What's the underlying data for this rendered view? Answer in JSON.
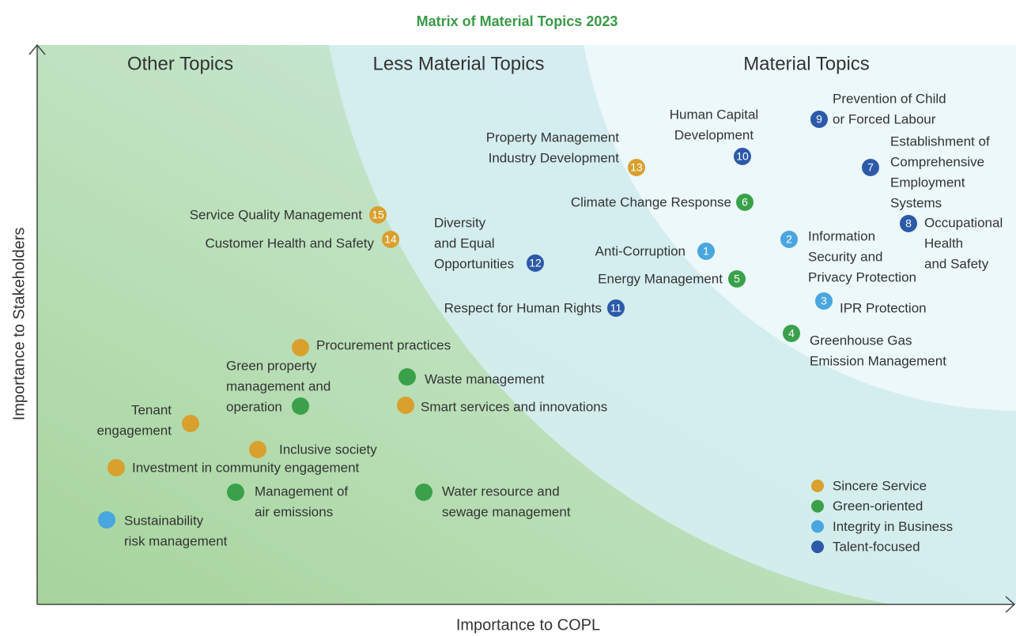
{
  "title": "Matrix of Material Topics 2023",
  "y_axis_label": "Importance to Stakeholders",
  "x_axis_label": "Importance to COPL",
  "regions": [
    "Other Topics",
    "Less Material Topics",
    "Material Topics"
  ],
  "groups": [
    {
      "name": "Sincere Service",
      "color": "#d9a02e",
      "topics": [
        {
          "number": 13,
          "label": [
            "Property Management",
            "Industry Development"
          ]
        },
        {
          "number": 15,
          "label": [
            "Service Quality Management"
          ]
        },
        {
          "number": 14,
          "label": [
            "Customer Health and Safety"
          ]
        },
        {
          "label": [
            "Procurement practices"
          ]
        },
        {
          "label": [
            "Smart services and innovations"
          ]
        },
        {
          "label": [
            "Tenant",
            "engagement"
          ]
        },
        {
          "label": [
            "Inclusive society"
          ]
        },
        {
          "label": [
            "Investment in community engagement"
          ]
        }
      ]
    },
    {
      "name": "Green-oriented",
      "color": "#3aa14a",
      "topics": [
        {
          "number": 6,
          "label": [
            "Climate Change Response"
          ]
        },
        {
          "number": 5,
          "label": [
            "Energy Management"
          ]
        },
        {
          "number": 4,
          "label": [
            "Greenhouse Gas",
            "Emission Management"
          ]
        },
        {
          "label": [
            "Green property",
            "management and",
            "operation"
          ]
        },
        {
          "label": [
            "Waste management"
          ]
        },
        {
          "label": [
            "Management of",
            "air emissions"
          ]
        },
        {
          "label": [
            "Water resource and",
            "sewage management"
          ]
        }
      ]
    },
    {
      "name": "Integrity in Business",
      "color": "#4aa6df",
      "topics": [
        {
          "number": 1,
          "label": [
            "Anti-Corruption"
          ]
        },
        {
          "number": 2,
          "label": [
            "Information",
            "Security and",
            "Privacy Protection"
          ]
        },
        {
          "number": 3,
          "label": [
            "IPR Protection"
          ]
        },
        {
          "label": [
            "Sustainability",
            "risk management"
          ]
        }
      ]
    },
    {
      "name": "Talent-focused",
      "color": "#2c5aa8",
      "topics": [
        {
          "number": 10,
          "label": [
            "Human Capital",
            "Development"
          ]
        },
        {
          "number": 9,
          "label": [
            "Prevention of Child",
            "or Forced Labour"
          ]
        },
        {
          "number": 7,
          "label": [
            "Establishment of",
            "Comprehensive",
            "Employment",
            "Systems"
          ]
        },
        {
          "number": 8,
          "label": [
            "Occupational",
            "Health",
            "and Safety"
          ]
        },
        {
          "number": 12,
          "label": [
            "Diversity",
            "and Equal",
            "Opportunities"
          ]
        },
        {
          "number": 11,
          "label": [
            "Respect for Human Rights"
          ]
        }
      ]
    }
  ]
}
